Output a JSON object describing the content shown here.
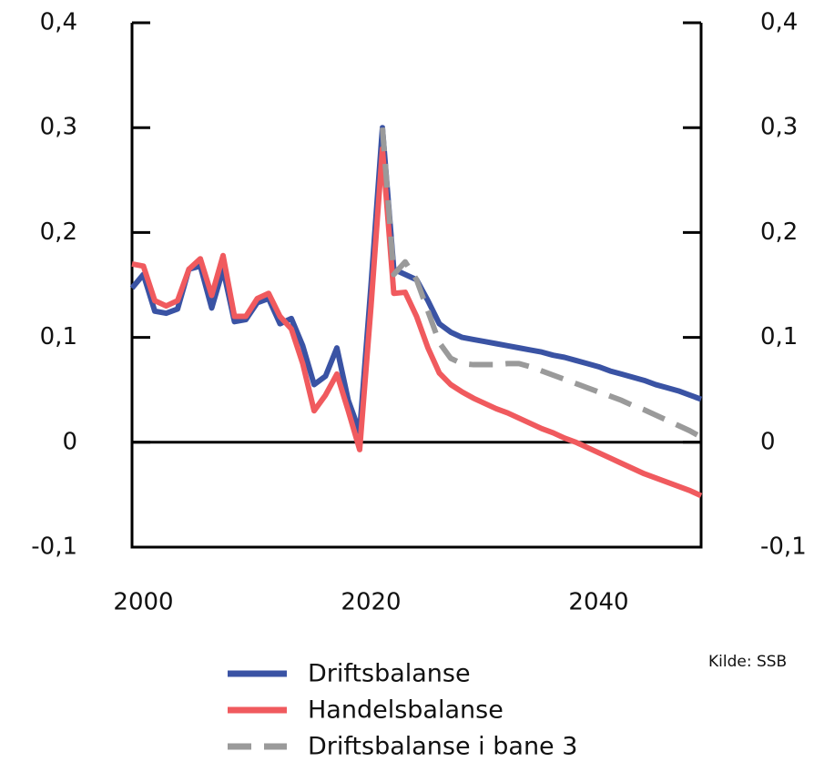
{
  "chart_data": {
    "type": "line",
    "x": [
      1999,
      2000,
      2001,
      2002,
      2003,
      2004,
      2005,
      2006,
      2007,
      2008,
      2009,
      2010,
      2011,
      2012,
      2013,
      2014,
      2015,
      2016,
      2017,
      2018,
      2019,
      2020,
      2021,
      2022,
      2023,
      2024,
      2025,
      2026,
      2027,
      2028,
      2029,
      2030,
      2031,
      2032,
      2033,
      2034,
      2035,
      2036,
      2037,
      2038,
      2039,
      2040,
      2041,
      2042,
      2043,
      2044,
      2045,
      2046,
      2047,
      2048,
      2049
    ],
    "series": [
      {
        "name": "Driftsbalanse",
        "color": "#3a53a4",
        "dashed": false,
        "values": [
          0.147,
          0.16,
          0.125,
          0.123,
          0.127,
          0.165,
          0.168,
          0.128,
          0.165,
          0.115,
          0.117,
          0.133,
          0.137,
          0.113,
          0.118,
          0.092,
          0.055,
          0.063,
          0.09,
          0.04,
          0.01,
          0.15,
          0.3,
          0.165,
          0.16,
          0.155,
          0.135,
          0.113,
          0.105,
          0.1,
          0.098,
          0.096,
          0.094,
          0.092,
          0.09,
          0.088,
          0.086,
          0.083,
          0.081,
          0.078,
          0.075,
          0.072,
          0.068,
          0.065,
          0.062,
          0.059,
          0.055,
          0.052,
          0.049,
          0.045,
          0.041
        ]
      },
      {
        "name": "Handelsbalanse",
        "color": "#f05a5e",
        "dashed": false,
        "values": [
          0.17,
          0.168,
          0.135,
          0.13,
          0.135,
          0.165,
          0.175,
          0.14,
          0.178,
          0.12,
          0.12,
          0.137,
          0.142,
          0.12,
          0.108,
          0.075,
          0.03,
          0.045,
          0.065,
          0.03,
          -0.007,
          0.13,
          0.28,
          0.142,
          0.143,
          0.12,
          0.09,
          0.066,
          0.055,
          0.048,
          0.042,
          0.037,
          0.032,
          0.028,
          0.023,
          0.018,
          0.013,
          0.009,
          0.004,
          0.0,
          -0.005,
          -0.01,
          -0.015,
          -0.02,
          -0.025,
          -0.03,
          -0.034,
          -0.038,
          -0.042,
          -0.046,
          -0.051
        ]
      },
      {
        "name": "Driftsbalanse i bane 3",
        "color": "#9a9a9a",
        "dashed": true,
        "values": [
          null,
          null,
          null,
          null,
          null,
          null,
          null,
          null,
          null,
          null,
          null,
          null,
          null,
          null,
          null,
          null,
          null,
          null,
          null,
          null,
          null,
          null,
          0.3,
          0.16,
          0.172,
          0.155,
          0.125,
          0.095,
          0.08,
          0.075,
          0.074,
          0.074,
          0.074,
          0.075,
          0.075,
          0.072,
          0.068,
          0.064,
          0.06,
          0.056,
          0.052,
          0.048,
          0.044,
          0.04,
          0.035,
          0.031,
          0.026,
          0.021,
          0.016,
          0.011,
          0.005
        ]
      }
    ],
    "xlim": [
      1999,
      2049
    ],
    "xticks": [
      2000,
      2020,
      2040
    ],
    "ylim": [
      -0.1,
      0.4
    ],
    "yticks": [
      {
        "value": -0.1,
        "label": "-0,1"
      },
      0,
      {
        "value": 0.1,
        "label": "0,1"
      },
      {
        "value": 0.2,
        "label": "0,2"
      },
      {
        "value": 0.3,
        "label": "0,3"
      },
      {
        "value": 0.4,
        "label": "0,4"
      }
    ],
    "y2lim": [
      -0.1,
      0.4
    ],
    "y2ticks": [
      {
        "value": -0.1,
        "label": "-0,1"
      },
      0,
      {
        "value": 0.1,
        "label": "0,1"
      },
      {
        "value": 0.2,
        "label": "0,2"
      },
      {
        "value": 0.3,
        "label": "0,3"
      },
      {
        "value": 0.4,
        "label": "0,4"
      }
    ],
    "source": "Kilde: SSB"
  }
}
